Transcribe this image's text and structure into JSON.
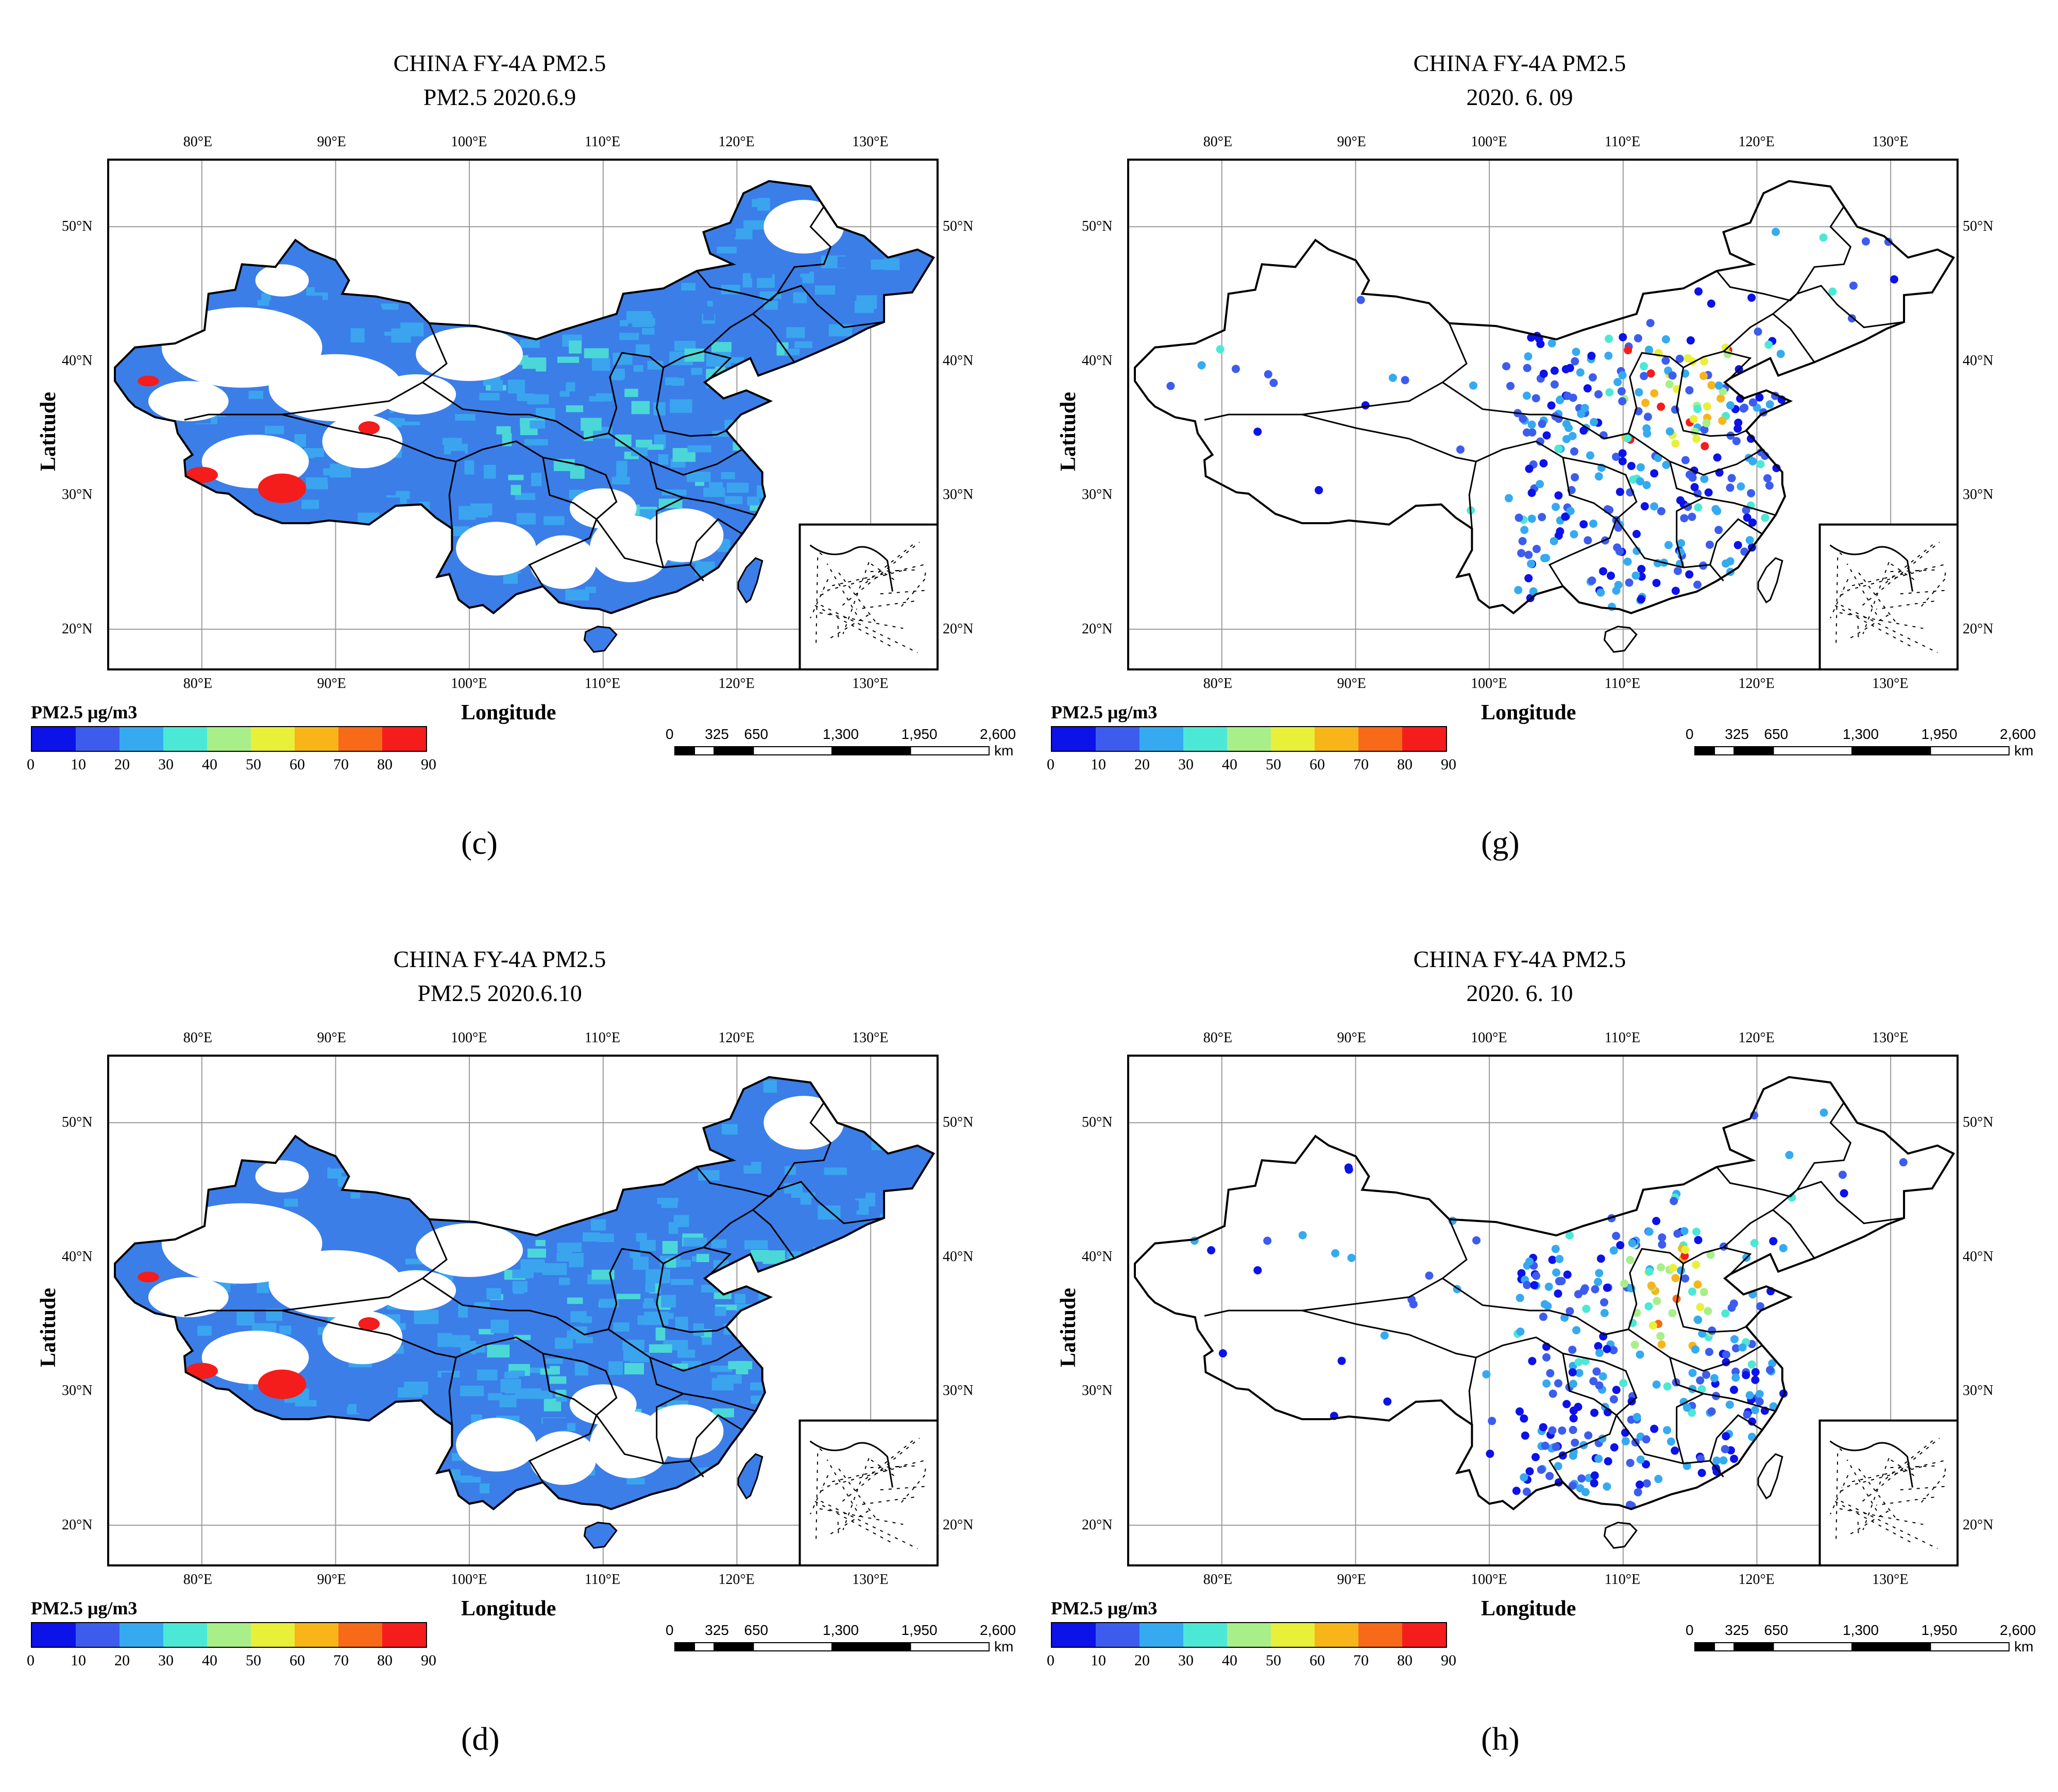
{
  "colors": {
    "legend": [
      "#0c12e8",
      "#3d5cee",
      "#35aaf0",
      "#4ce8d6",
      "#a8ef8a",
      "#e8f03a",
      "#f7b51a",
      "#f76a17",
      "#f51c1c"
    ],
    "grid": "#9a9a9a",
    "satellite_base": "#3b7ee8",
    "satellite_mid": "#3aa5ee",
    "satellite_hi": "#4bd6d8"
  },
  "shared": {
    "lon_ticks": [
      "80°E",
      "90°E",
      "100°E",
      "110°E",
      "120°E",
      "130°E"
    ],
    "lat_ticks": [
      "50°N",
      "40°N",
      "30°N",
      "20°N"
    ],
    "xlabel": "Longitude",
    "ylabel": "Latitude",
    "legend_title": "PM2.5 μg/m3",
    "legend_ticks": [
      "0",
      "10",
      "20",
      "30",
      "40",
      "50",
      "60",
      "70",
      "80",
      "90"
    ],
    "scale_labels": [
      "0",
      "325",
      "650",
      "1,300",
      "1,950",
      "2,600"
    ],
    "scale_unit": "km"
  },
  "panels": [
    {
      "label": "(c)",
      "title1": "CHINA FY-4A  PM2.5",
      "title2": "PM2.5 2020.6.9",
      "kind": "satellite"
    },
    {
      "label": "(g)",
      "title1": "CHINA FY-4A  PM2.5",
      "title2": "2020. 6. 09",
      "kind": "stations"
    },
    {
      "label": "(d)",
      "title1": "CHINA FY-4A  PM2.5",
      "title2": "PM2.5 2020.6.10",
      "kind": "satellite"
    },
    {
      "label": "(h)",
      "title1": "CHINA FY-4A  PM2.5",
      "title2": "2020. 6. 10",
      "kind": "stations"
    }
  ]
}
